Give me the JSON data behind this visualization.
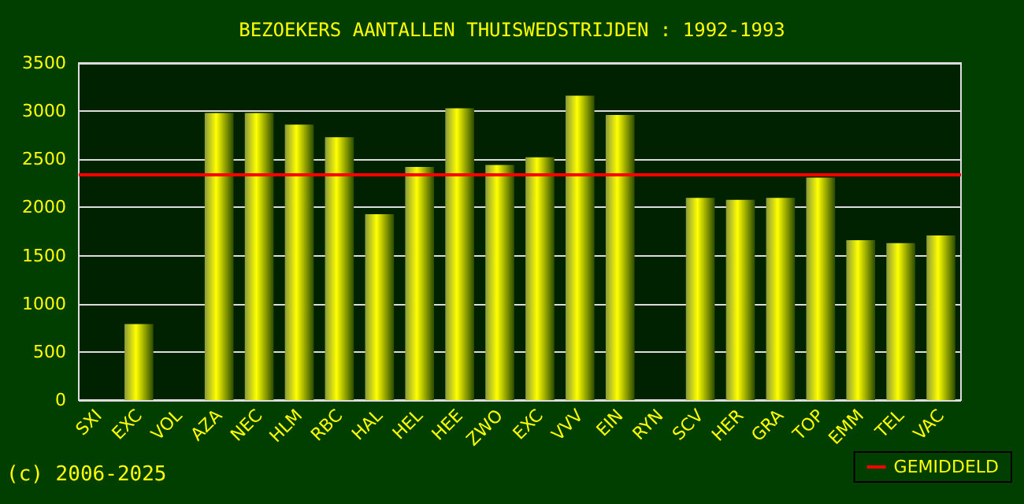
{
  "chart_data": {
    "type": "bar",
    "title": "BEZOEKERS AANTALLEN THUISWEDSTRIJDEN : 1992-1993",
    "categories": [
      "SXI",
      "EXC",
      "VOL",
      "AZA",
      "NEC",
      "HLM",
      "RBC",
      "HAL",
      "HEL",
      "HEE",
      "ZWO",
      "EXC",
      "VVV",
      "EIN",
      "RYN",
      "SCV",
      "HER",
      "GRA",
      "TOP",
      "EMM",
      "TEL",
      "VAC"
    ],
    "values": [
      null,
      790,
      null,
      2980,
      2980,
      2860,
      2730,
      1930,
      2420,
      3030,
      2440,
      2520,
      3160,
      2960,
      null,
      2100,
      2080,
      2100,
      2310,
      1660,
      1630,
      1710
    ],
    "color": "#ffff00",
    "ylim": [
      0,
      3500
    ],
    "yticks": [
      0,
      500,
      1000,
      1500,
      2000,
      2500,
      3000,
      3500
    ],
    "grid": "y",
    "ref_lines": [
      {
        "axis": "y",
        "value": 2350,
        "label": "GEMIDDELD",
        "color": "#ff0000"
      }
    ],
    "legend": "bottom right",
    "annotations": [
      "(c) 2006-2025"
    ]
  }
}
